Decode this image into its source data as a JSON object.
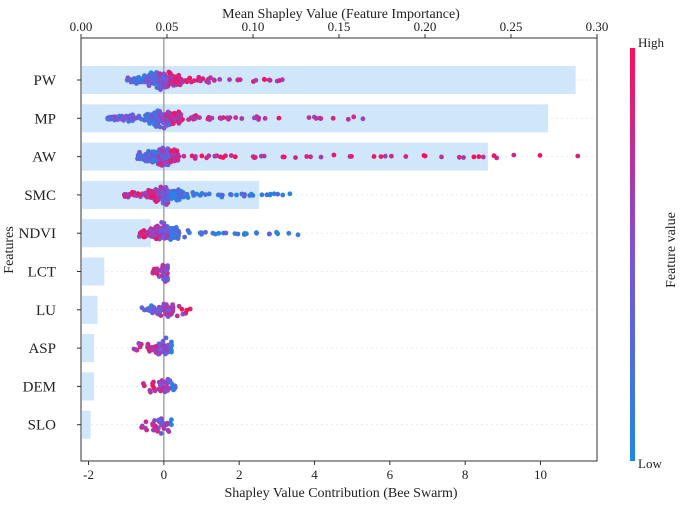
{
  "chart_data": {
    "type": "scatter",
    "subtype": "shap-beeswarm-with-mean-importance-bars",
    "top_axis": {
      "title": "Mean Shapley Value (Feature Importance)",
      "range": [
        0.0,
        0.3
      ],
      "ticks": [
        "0.00",
        "0.05",
        "0.10",
        "0.15",
        "0.20",
        "0.25",
        "0.30"
      ]
    },
    "bottom_axis": {
      "title": "Shapley Value Contribution (Bee Swarm)",
      "range": [
        -2.2,
        11.5
      ],
      "ticks": [
        "-2",
        "0",
        "2",
        "4",
        "6",
        "8",
        "10"
      ]
    },
    "ylabel": "Features",
    "colorbar": {
      "title": "Feature value",
      "high_label": "High",
      "low_label": "Low",
      "low_color": "#1E88E5",
      "high_color": "#FF0D57"
    },
    "bar_color": "#cfe6fb",
    "features": [
      {
        "name": "PW",
        "mean_importance": 0.287,
        "shap_min": -1.0,
        "shap_max": 3.2
      },
      {
        "name": "MP",
        "mean_importance": 0.271,
        "shap_min": -1.5,
        "shap_max": 5.5
      },
      {
        "name": "AW",
        "mean_importance": 0.236,
        "shap_min": -0.7,
        "shap_max": 11.0
      },
      {
        "name": "SMC",
        "mean_importance": 0.103,
        "shap_min": -1.1,
        "shap_max": 3.4
      },
      {
        "name": "NDVI",
        "mean_importance": 0.04,
        "shap_min": -0.7,
        "shap_max": 3.6
      },
      {
        "name": "LCT",
        "mean_importance": 0.013,
        "shap_min": -0.3,
        "shap_max": 0.1
      },
      {
        "name": "LU",
        "mean_importance": 0.009,
        "shap_min": -0.6,
        "shap_max": 0.7
      },
      {
        "name": "ASP",
        "mean_importance": 0.007,
        "shap_min": -0.8,
        "shap_max": 0.2
      },
      {
        "name": "DEM",
        "mean_importance": 0.007,
        "shap_min": -0.6,
        "shap_max": 0.3
      },
      {
        "name": "SLO",
        "mean_importance": 0.005,
        "shap_min": -0.6,
        "shap_max": 0.2
      }
    ]
  }
}
